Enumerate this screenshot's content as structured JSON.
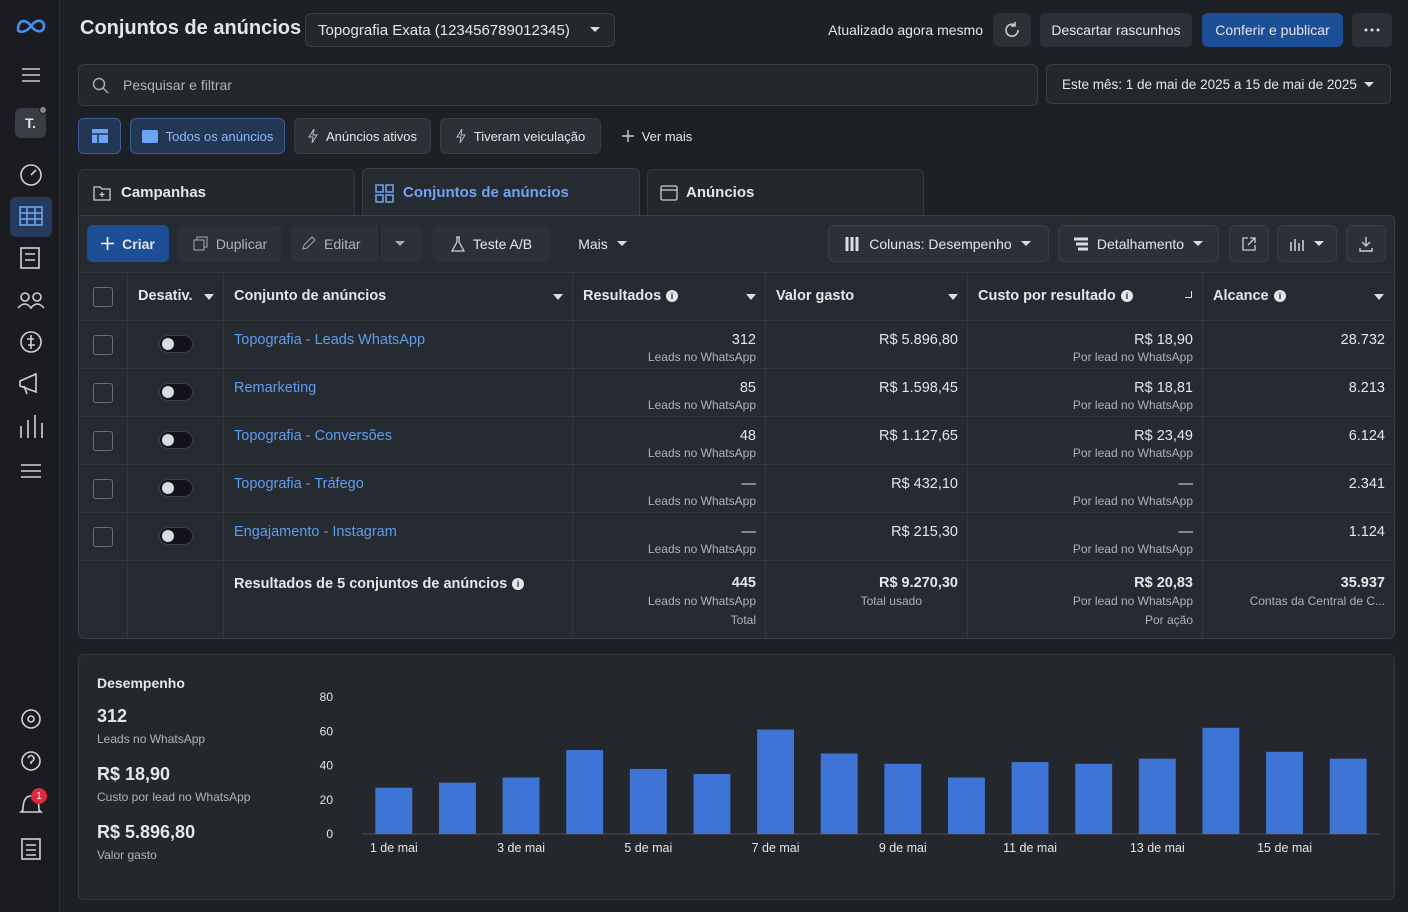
{
  "sidebar": {
    "avatar": "T.",
    "badge": "1"
  },
  "header": {
    "title": "Conjuntos de anúncios",
    "account": "Topografia Exata (123456789012345)",
    "status": "Atualizado agora mesmo",
    "discard": "Descartar rascunhos",
    "publish": "Conferir e publicar"
  },
  "search": {
    "placeholder": "Pesquisar e filtrar",
    "date_range": "Este mês: 1 de mai de 2025 a 15 de mai de 2025"
  },
  "filters": [
    "Todos os anúncios",
    "Anúncios ativos",
    "Tiveram veiculação",
    "Ver mais"
  ],
  "tabs": [
    "Campanhas",
    "Conjuntos de anúncios",
    "Anúncios"
  ],
  "toolbar": {
    "create": "Criar",
    "duplicate": "Duplicar",
    "edit": "Editar",
    "ab_test": "Teste A/B",
    "more": "Mais",
    "columns": "Colunas: Desempenho",
    "breakdown": "Detalhamento"
  },
  "table": {
    "columns": [
      "Desativ.",
      "Conjunto de anúncios",
      "Resultados",
      "Valor gasto",
      "Custo por resultado",
      "Alcance"
    ],
    "rows": [
      {
        "name": "Topografia - Leads WhatsApp",
        "results": "312",
        "results_label": "Leads no WhatsApp",
        "spent": "R$ 5.896,80",
        "cost": "R$ 18,90",
        "cost_label": "Por lead no WhatsApp",
        "reach": "28.732"
      },
      {
        "name": "Remarketing",
        "results": "85",
        "results_label": "Leads no WhatsApp",
        "spent": "R$ 1.598,45",
        "cost": "R$ 18,81",
        "cost_label": "Por lead no WhatsApp",
        "reach": "8.213"
      },
      {
        "name": "Topografia - Conversões",
        "results": "48",
        "results_label": "Leads no WhatsApp",
        "spent": "R$ 1.127,65",
        "cost": "R$ 23,49",
        "cost_label": "Por lead no WhatsApp",
        "reach": "6.124"
      },
      {
        "name": "Topografia - Tráfego",
        "results": "—",
        "results_label": "Leads no WhatsApp",
        "spent": "R$ 432,10",
        "cost": "—",
        "cost_label": "Por lead no WhatsApp",
        "reach": "2.341"
      },
      {
        "name": "Engajamento - Instagram",
        "results": "—",
        "results_label": "Leads no WhatsApp",
        "spent": "R$ 215,30",
        "cost": "—",
        "cost_label": "Por lead no WhatsApp",
        "reach": "1.124"
      }
    ],
    "summary": {
      "name": "Resultados de 5 conjuntos de anúncios",
      "results": "445",
      "results_label": "Leads no WhatsApp",
      "results_note": "Total",
      "spent": "R$ 9.270,30",
      "spent_label": "Total usado",
      "cost": "R$ 20,83",
      "cost_label": "Por lead no WhatsApp",
      "cost_note": "Por ação",
      "reach": "35.937",
      "reach_label": "Contas da Central de C..."
    }
  },
  "performance": {
    "title": "Desempenho",
    "metrics": [
      {
        "value": "312",
        "label": "Leads no WhatsApp"
      },
      {
        "value": "R$ 18,90",
        "label": "Custo por lead no WhatsApp"
      },
      {
        "value": "R$ 5.896,80",
        "label": "Valor gasto"
      }
    ]
  },
  "chart_data": {
    "type": "bar",
    "categories": [
      "1 de mai",
      null,
      "3 de mai",
      null,
      "5 de mai",
      null,
      "7 de mai",
      null,
      "9 de mai",
      null,
      "11 de mai",
      null,
      "13 de mai",
      null,
      "15 de mai",
      null
    ],
    "values": [
      27,
      30,
      33,
      49,
      38,
      35,
      61,
      47,
      41,
      33,
      42,
      41,
      44,
      62,
      48,
      44
    ],
    "color": "#3d74d6",
    "ylim": [
      0,
      80
    ],
    "yticks": [
      0,
      20,
      40,
      60,
      80
    ],
    "grid": false
  }
}
